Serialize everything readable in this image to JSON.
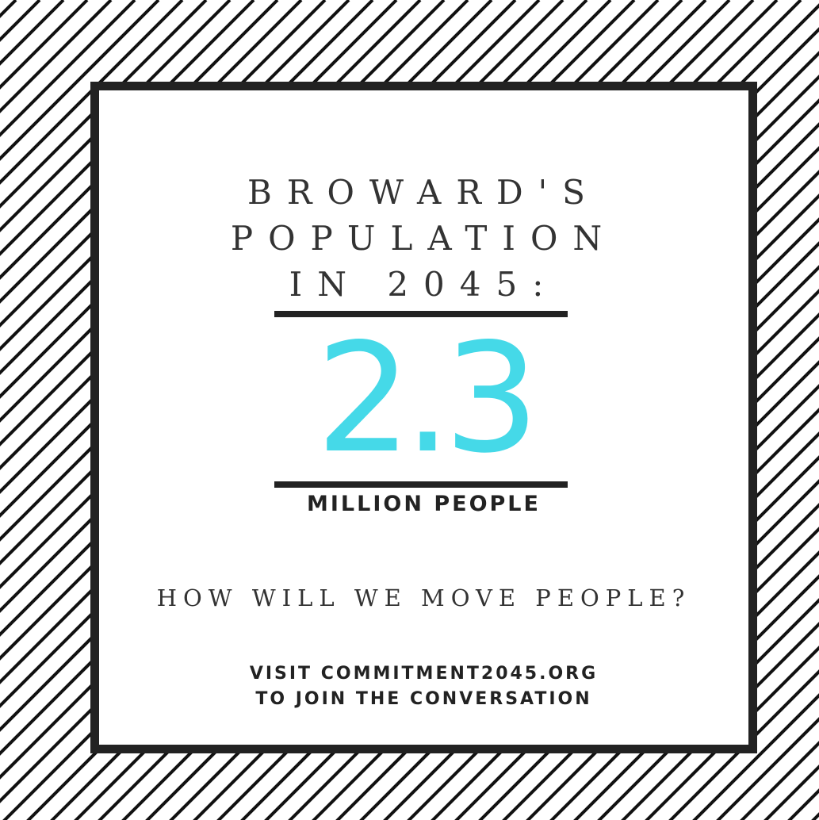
{
  "colors": {
    "accent": "#45d9e8",
    "frame": "#222222",
    "stripe": "#111111",
    "background": "#ffffff"
  },
  "headline": {
    "line1": "BROWARD'S",
    "line2": "POPULATION",
    "line3": "IN 2045:"
  },
  "figure": {
    "value": "2.3",
    "unit": "MILLION PEOPLE"
  },
  "question": "HOW WILL WE MOVE PEOPLE?",
  "call_to_action": {
    "line1": "VISIT COMMITMENT2045.ORG",
    "line2": "TO JOIN THE CONVERSATION"
  }
}
